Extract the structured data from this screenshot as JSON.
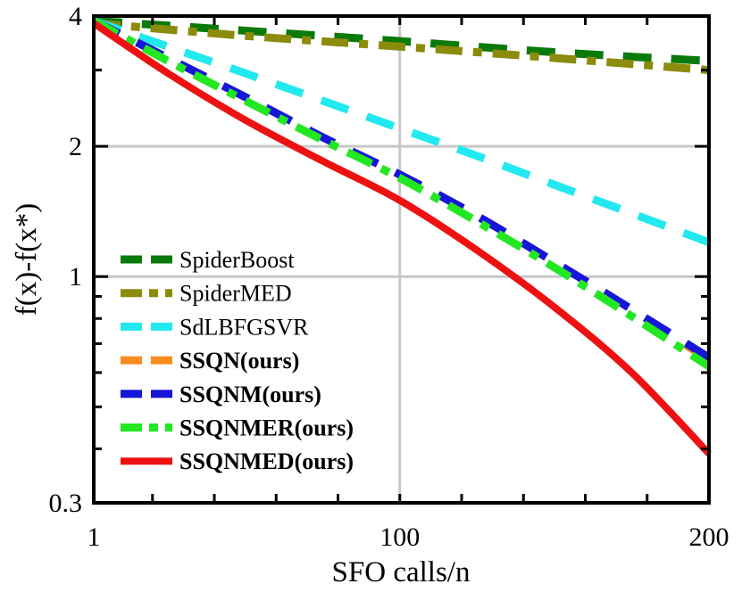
{
  "chart_data": {
    "type": "line",
    "xlabel": "SFO calls/n",
    "ylabel": "f(x)-f(x*)",
    "xlim": [
      1,
      200
    ],
    "ylim": [
      0.3,
      4
    ],
    "yscale": "log",
    "grid": true,
    "legend_position": "lower-left",
    "xticks": [
      {
        "value": 1,
        "label": "1"
      },
      {
        "value": 100,
        "label": "100"
      },
      {
        "value": 200,
        "label": "200"
      }
    ],
    "yticks": [
      {
        "value": 0.3,
        "label": "0.3"
      },
      {
        "value": 1,
        "label": "1"
      },
      {
        "value": 2,
        "label": "2"
      },
      {
        "value": 4,
        "label": "4"
      }
    ],
    "series": [
      {
        "name": "SpiderBoost",
        "color": "#0a7a0a",
        "style": "dashed",
        "bold": false,
        "x": [
          1,
          50,
          100,
          150,
          200
        ],
        "y": [
          3.9,
          3.7,
          3.5,
          3.3,
          3.15
        ]
      },
      {
        "name": "SpiderMED",
        "color": "#8b8b0c",
        "style": "dash-dot",
        "bold": false,
        "x": [
          1,
          50,
          100,
          150,
          200
        ],
        "y": [
          3.85,
          3.6,
          3.4,
          3.2,
          3.0
        ]
      },
      {
        "name": "SdLBFGSVR",
        "color": "#22e8f0",
        "style": "dashed",
        "bold": false,
        "x": [
          1,
          25,
          50,
          75,
          100,
          125,
          150,
          175,
          200
        ],
        "y": [
          3.9,
          3.4,
          2.95,
          2.55,
          2.2,
          1.9,
          1.63,
          1.4,
          1.2
        ]
      },
      {
        "name": "SSQN(ours)",
        "color": "#f98c1f",
        "style": "dashed",
        "bold": true,
        "x": [
          1,
          25,
          50,
          75,
          100,
          125,
          150,
          175,
          200
        ],
        "y": [
          3.9,
          3.2,
          2.6,
          2.1,
          1.72,
          1.38,
          1.08,
          0.84,
          0.64
        ]
      },
      {
        "name": "SSQNM(ours)",
        "color": "#1616d9",
        "style": "dashed",
        "bold": true,
        "x": [
          1,
          25,
          50,
          75,
          100,
          125,
          150,
          175,
          200
        ],
        "y": [
          3.9,
          3.2,
          2.6,
          2.1,
          1.72,
          1.38,
          1.08,
          0.84,
          0.65
        ]
      },
      {
        "name": "SSQNMER(ours)",
        "color": "#22e822",
        "style": "dash-dot",
        "bold": true,
        "x": [
          1,
          25,
          50,
          75,
          100,
          125,
          150,
          175,
          200
        ],
        "y": [
          3.9,
          3.15,
          2.55,
          2.07,
          1.69,
          1.34,
          1.05,
          0.81,
          0.62
        ]
      },
      {
        "name": "SSQNMED(ours)",
        "color": "#ee1111",
        "style": "solid",
        "bold": true,
        "x": [
          1,
          25,
          50,
          75,
          100,
          125,
          150,
          175,
          200
        ],
        "y": [
          3.85,
          2.95,
          2.3,
          1.85,
          1.5,
          1.15,
          0.85,
          0.6,
          0.39
        ]
      }
    ]
  }
}
